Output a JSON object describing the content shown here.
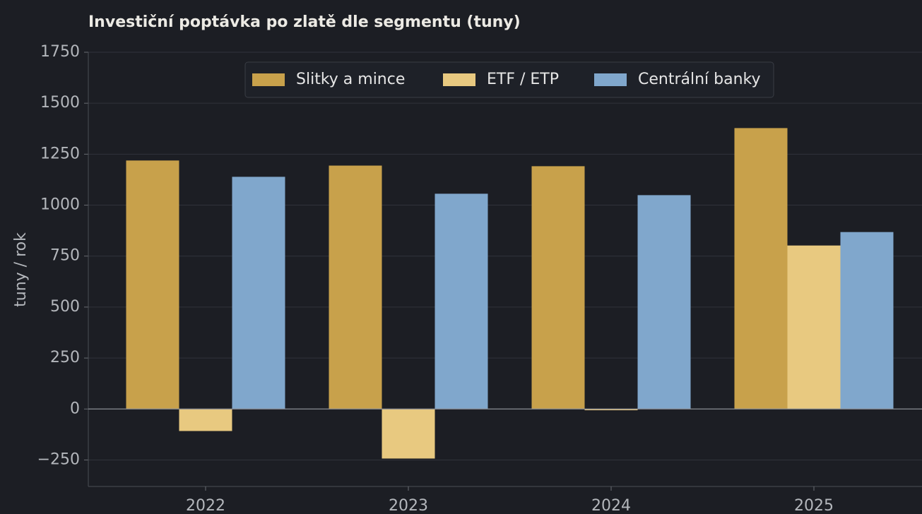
{
  "chart_data": {
    "type": "bar",
    "title": "Investiční poptávka po zlatě dle segmentu (tuny)",
    "ylabel": "tuny / rok",
    "categories": [
      "2022",
      "2023",
      "2024",
      "2025"
    ],
    "series": [
      {
        "name": "Slitky a mince",
        "color": "#c8a14b",
        "values": [
          1219,
          1194,
          1191,
          1378
        ]
      },
      {
        "name": "ETF / ETP",
        "color": "#e8c980",
        "values": [
          -108,
          -243,
          -6,
          802
        ]
      },
      {
        "name": "Centrální banky",
        "color": "#80a7cc",
        "values": [
          1139,
          1056,
          1049,
          868
        ]
      }
    ],
    "ylim": [
      -380,
      1750
    ],
    "yticks": [
      {
        "value": -250,
        "label": "−250"
      },
      0,
      250,
      500,
      750,
      1000,
      1250,
      1500,
      1750
    ],
    "grid": true,
    "legend": "upper center"
  }
}
